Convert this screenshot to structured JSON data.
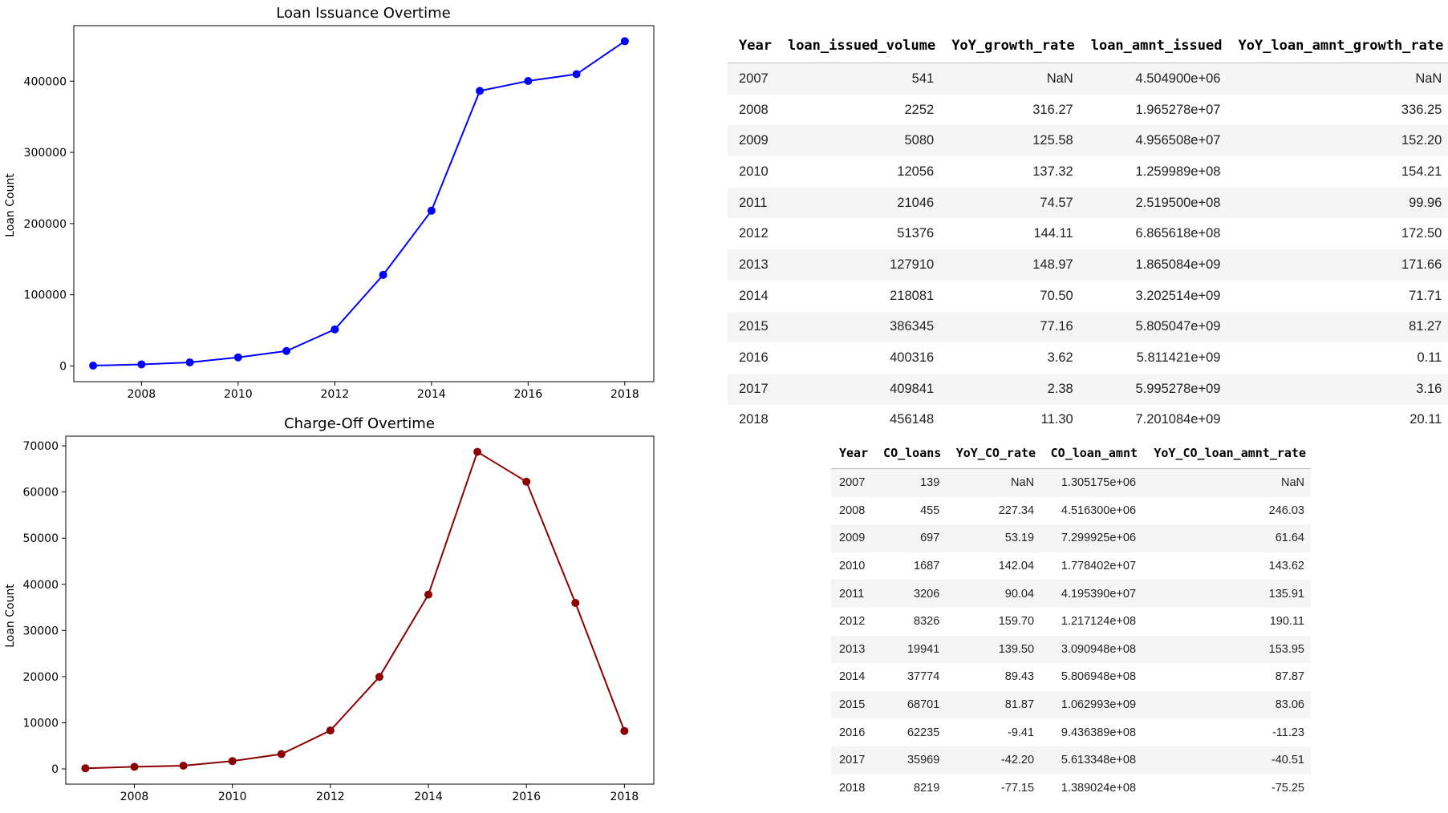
{
  "charts": {
    "issuance": {
      "title": "Loan Issuance Overtime",
      "ylabel": "Loan Count"
    },
    "chargeoff": {
      "title": "Charge-Off Overtime",
      "ylabel": "Loan Count"
    }
  },
  "chart_data": [
    {
      "type": "line",
      "title": "Loan Issuance Overtime",
      "xlabel": "",
      "ylabel": "Loan Count",
      "x": [
        2007,
        2008,
        2009,
        2010,
        2011,
        2012,
        2013,
        2014,
        2015,
        2016,
        2017,
        2018
      ],
      "x_ticks": [
        2008,
        2010,
        2012,
        2014,
        2016,
        2018
      ],
      "xlim": [
        2006.6,
        2018.6
      ],
      "y_ticks": [
        0,
        100000,
        200000,
        300000,
        400000
      ],
      "ylim": [
        -22000,
        478000
      ],
      "grid": false,
      "series": [
        {
          "color": "#0000ff",
          "marker": "circle",
          "values": [
            541,
            2252,
            5080,
            12056,
            21046,
            51376,
            127910,
            218081,
            386345,
            400316,
            409841,
            456148
          ]
        }
      ]
    },
    {
      "type": "line",
      "title": "Charge-Off Overtime",
      "xlabel": "",
      "ylabel": "Loan Count",
      "x": [
        2007,
        2008,
        2009,
        2010,
        2011,
        2012,
        2013,
        2014,
        2015,
        2016,
        2017,
        2018
      ],
      "x_ticks": [
        2008,
        2010,
        2012,
        2014,
        2016,
        2018
      ],
      "xlim": [
        2006.6,
        2018.6
      ],
      "y_ticks": [
        0,
        10000,
        20000,
        30000,
        40000,
        50000,
        60000,
        70000
      ],
      "ylim": [
        -3300,
        72100
      ],
      "grid": false,
      "series": [
        {
          "color": "#8b0000",
          "marker": "circle",
          "values": [
            139,
            455,
            697,
            1687,
            3206,
            8326,
            19941,
            37774,
            68701,
            62235,
            35969,
            8219
          ]
        }
      ]
    }
  ],
  "table1": {
    "headers": [
      "Year",
      "loan_issued_volume",
      "YoY_growth_rate",
      "loan_amnt_issued",
      "YoY_loan_amnt_growth_rate"
    ],
    "rows": [
      [
        "2007",
        "541",
        "NaN",
        "4.504900e+06",
        "NaN"
      ],
      [
        "2008",
        "2252",
        "316.27",
        "1.965278e+07",
        "336.25"
      ],
      [
        "2009",
        "5080",
        "125.58",
        "4.956508e+07",
        "152.20"
      ],
      [
        "2010",
        "12056",
        "137.32",
        "1.259989e+08",
        "154.21"
      ],
      [
        "2011",
        "21046",
        "74.57",
        "2.519500e+08",
        "99.96"
      ],
      [
        "2012",
        "51376",
        "144.11",
        "6.865618e+08",
        "172.50"
      ],
      [
        "2013",
        "127910",
        "148.97",
        "1.865084e+09",
        "171.66"
      ],
      [
        "2014",
        "218081",
        "70.50",
        "3.202514e+09",
        "71.71"
      ],
      [
        "2015",
        "386345",
        "77.16",
        "5.805047e+09",
        "81.27"
      ],
      [
        "2016",
        "400316",
        "3.62",
        "5.811421e+09",
        "0.11"
      ],
      [
        "2017",
        "409841",
        "2.38",
        "5.995278e+09",
        "3.16"
      ],
      [
        "2018",
        "456148",
        "11.30",
        "7.201084e+09",
        "20.11"
      ]
    ]
  },
  "table2": {
    "headers": [
      "Year",
      "CO_loans",
      "YoY_CO_rate",
      "CO_loan_amnt",
      "YoY_CO_loan_amnt_rate"
    ],
    "rows": [
      [
        "2007",
        "139",
        "NaN",
        "1.305175e+06",
        "NaN"
      ],
      [
        "2008",
        "455",
        "227.34",
        "4.516300e+06",
        "246.03"
      ],
      [
        "2009",
        "697",
        "53.19",
        "7.299925e+06",
        "61.64"
      ],
      [
        "2010",
        "1687",
        "142.04",
        "1.778402e+07",
        "143.62"
      ],
      [
        "2011",
        "3206",
        "90.04",
        "4.195390e+07",
        "135.91"
      ],
      [
        "2012",
        "8326",
        "159.70",
        "1.217124e+08",
        "190.11"
      ],
      [
        "2013",
        "19941",
        "139.50",
        "3.090948e+08",
        "153.95"
      ],
      [
        "2014",
        "37774",
        "89.43",
        "5.806948e+08",
        "87.87"
      ],
      [
        "2015",
        "68701",
        "81.87",
        "1.062993e+09",
        "83.06"
      ],
      [
        "2016",
        "62235",
        "-9.41",
        "9.436389e+08",
        "-11.23"
      ],
      [
        "2017",
        "35969",
        "-42.20",
        "5.613348e+08",
        "-40.51"
      ],
      [
        "2018",
        "8219",
        "-77.15",
        "1.389024e+08",
        "-75.25"
      ]
    ]
  }
}
